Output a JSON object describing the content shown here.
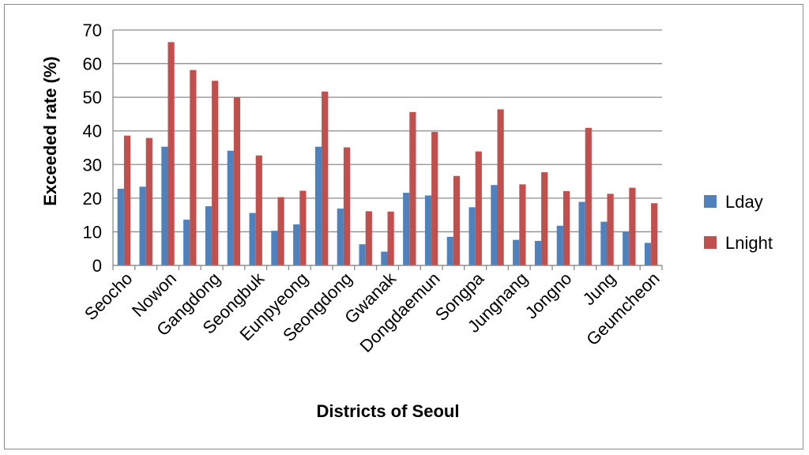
{
  "chart_data": {
    "type": "bar",
    "title": "",
    "xlabel": "Districts of Seoul",
    "ylabel": "Exceeded rate (%)",
    "ylim": [
      0,
      70
    ],
    "yticks": [
      0,
      10,
      20,
      30,
      40,
      50,
      60,
      70
    ],
    "grid": true,
    "legend_position": "right",
    "categories": [
      "Seocho",
      "",
      "Nowon",
      "",
      "Gangdong",
      "",
      "Seongbuk",
      "",
      "Eunpyeong",
      "",
      "Seongdong",
      "",
      "Gwanak",
      "",
      "Dongdaemun",
      "",
      "Songpa",
      "",
      "Jungnang",
      "",
      "Jongno",
      "",
      "Jung",
      "",
      "Geumcheon"
    ],
    "tick_labels": [
      "Seocho",
      "Nowon",
      "Gangdong",
      "Seongbuk",
      "Eunpyeong",
      "Seongdong",
      "Gwanak",
      "Dongdaemun",
      "Songpa",
      "Jungnang",
      "Jongno",
      "Jung",
      "Geumcheon"
    ],
    "series": [
      {
        "name": "Lday",
        "color": "#4f81bd",
        "values": [
          22.8,
          23.4,
          35.3,
          13.6,
          17.6,
          34.1,
          15.6,
          10.3,
          12.2,
          35.3,
          16.9,
          6.3,
          4.1,
          21.6,
          20.8,
          8.5,
          17.3,
          23.9,
          7.6,
          7.3,
          11.8,
          18.9,
          13.0,
          10.1,
          6.7
        ]
      },
      {
        "name": "Lnight",
        "color": "#c0504d",
        "values": [
          38.6,
          37.9,
          66.4,
          58.1,
          54.9,
          50.0,
          32.7,
          20.3,
          22.2,
          51.7,
          35.1,
          16.1,
          16.0,
          45.6,
          39.7,
          26.6,
          33.9,
          46.4,
          24.1,
          27.7,
          22.1,
          40.9,
          21.3,
          23.1,
          18.5
        ]
      }
    ]
  }
}
